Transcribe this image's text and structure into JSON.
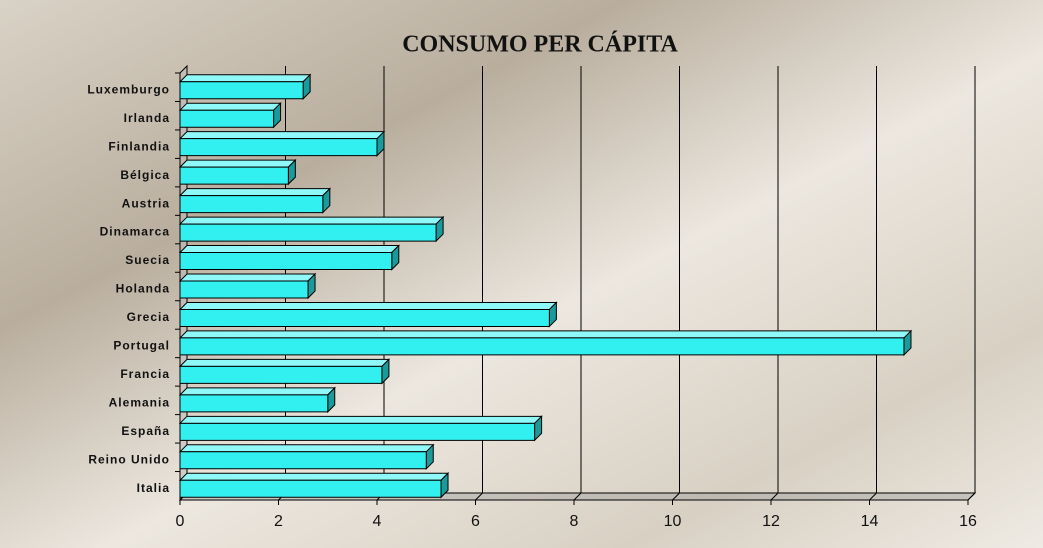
{
  "chart_data": {
    "type": "bar",
    "orientation": "horizontal",
    "title": "CONSUMO PER CÁPITA",
    "categories": [
      "Luxemburgo",
      "Irlanda",
      "Finlandia",
      "Bélgica",
      "Austria",
      "Dinamarca",
      "Suecia",
      "Holanda",
      "Grecia",
      "Portugal",
      "Francia",
      "Alemania",
      "España",
      "Reino Unido",
      "Italia"
    ],
    "values": [
      2.5,
      1.9,
      4.0,
      2.2,
      2.9,
      5.2,
      4.3,
      2.6,
      7.5,
      14.7,
      4.1,
      3.0,
      7.2,
      5.0,
      5.3
    ],
    "color": "#33f0f0",
    "xlim": [
      0,
      16
    ],
    "xticks": [
      0,
      2,
      4,
      6,
      8,
      10,
      12,
      14,
      16
    ],
    "grid": true
  }
}
